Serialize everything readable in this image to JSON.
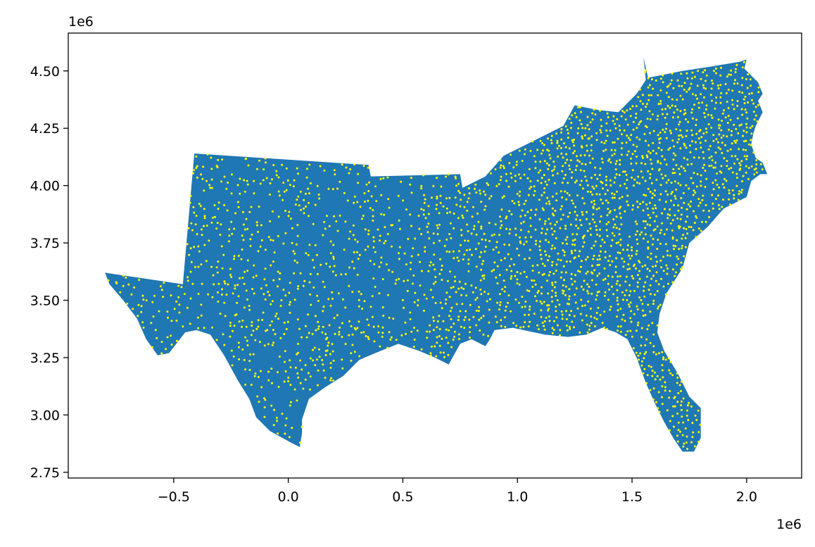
{
  "chart_data": {
    "type": "scatter",
    "title": "",
    "xlabel": "",
    "ylabel": "",
    "x_offset_label": "1e6",
    "y_offset_label": "1e6",
    "xlim": [
      -0.96,
      2.24
    ],
    "ylim": [
      2.725,
      4.665
    ],
    "x_ticks": [
      {
        "value": -0.5,
        "label": "−0.5"
      },
      {
        "value": 0.0,
        "label": "0.0"
      },
      {
        "value": 0.5,
        "label": "0.5"
      },
      {
        "value": 1.0,
        "label": "1.0"
      },
      {
        "value": 1.5,
        "label": "1.5"
      },
      {
        "value": 2.0,
        "label": "2.0"
      }
    ],
    "y_ticks": [
      {
        "value": 2.75,
        "label": "2.75"
      },
      {
        "value": 3.0,
        "label": "3.00"
      },
      {
        "value": 3.25,
        "label": "3.25"
      },
      {
        "value": 3.5,
        "label": "3.50"
      },
      {
        "value": 3.75,
        "label": "3.75"
      },
      {
        "value": 4.0,
        "label": "4.00"
      },
      {
        "value": 4.25,
        "label": "4.25"
      },
      {
        "value": 4.5,
        "label": "4.50"
      }
    ],
    "region_color": "#1f77b4",
    "point_color": "#ffff00",
    "grid": false,
    "legend": "none",
    "region_outline": [
      [
        -0.8,
        3.62
      ],
      [
        -0.46,
        3.57
      ],
      [
        -0.41,
        4.14
      ],
      [
        0.35,
        4.09
      ],
      [
        0.36,
        4.04
      ],
      [
        0.75,
        4.05
      ],
      [
        0.76,
        3.99
      ],
      [
        0.86,
        4.04
      ],
      [
        0.94,
        4.13
      ],
      [
        1.0,
        4.16
      ],
      [
        1.08,
        4.2
      ],
      [
        1.2,
        4.26
      ],
      [
        1.25,
        4.35
      ],
      [
        1.35,
        4.33
      ],
      [
        1.44,
        4.32
      ],
      [
        1.52,
        4.4
      ],
      [
        1.56,
        4.46
      ],
      [
        1.55,
        4.56
      ],
      [
        1.57,
        4.47
      ],
      [
        1.72,
        4.5
      ],
      [
        1.85,
        4.52
      ],
      [
        1.97,
        4.54
      ],
      [
        2.0,
        4.55
      ],
      [
        1.99,
        4.51
      ],
      [
        2.05,
        4.45
      ],
      [
        2.07,
        4.4
      ],
      [
        2.05,
        4.37
      ],
      [
        2.07,
        4.32
      ],
      [
        2.04,
        4.26
      ],
      [
        2.03,
        4.23
      ],
      [
        2.02,
        4.18
      ],
      [
        2.04,
        4.12
      ],
      [
        2.07,
        4.1
      ],
      [
        2.09,
        4.05
      ],
      [
        2.06,
        4.05
      ],
      [
        2.02,
        4.02
      ],
      [
        2.0,
        3.95
      ],
      [
        1.9,
        3.9
      ],
      [
        1.83,
        3.82
      ],
      [
        1.75,
        3.75
      ],
      [
        1.72,
        3.64
      ],
      [
        1.65,
        3.53
      ],
      [
        1.62,
        3.44
      ],
      [
        1.61,
        3.36
      ],
      [
        1.64,
        3.28
      ],
      [
        1.7,
        3.18
      ],
      [
        1.75,
        3.08
      ],
      [
        1.8,
        3.03
      ],
      [
        1.8,
        2.9
      ],
      [
        1.77,
        2.84
      ],
      [
        1.72,
        2.84
      ],
      [
        1.68,
        2.9
      ],
      [
        1.64,
        2.97
      ],
      [
        1.6,
        3.05
      ],
      [
        1.56,
        3.14
      ],
      [
        1.52,
        3.25
      ],
      [
        1.48,
        3.33
      ],
      [
        1.43,
        3.36
      ],
      [
        1.37,
        3.38
      ],
      [
        1.3,
        3.35
      ],
      [
        1.22,
        3.34
      ],
      [
        1.12,
        3.35
      ],
      [
        0.98,
        3.38
      ],
      [
        0.9,
        3.37
      ],
      [
        0.88,
        3.33
      ],
      [
        0.86,
        3.3
      ],
      [
        0.8,
        3.33
      ],
      [
        0.75,
        3.31
      ],
      [
        0.7,
        3.22
      ],
      [
        0.64,
        3.25
      ],
      [
        0.57,
        3.28
      ],
      [
        0.48,
        3.31
      ],
      [
        0.38,
        3.27
      ],
      [
        0.31,
        3.24
      ],
      [
        0.24,
        3.17
      ],
      [
        0.16,
        3.12
      ],
      [
        0.09,
        3.07
      ],
      [
        0.06,
        2.98
      ],
      [
        0.06,
        2.92
      ],
      [
        0.05,
        2.86
      ],
      [
        0.01,
        2.88
      ],
      [
        -0.08,
        2.93
      ],
      [
        -0.14,
        2.99
      ],
      [
        -0.17,
        3.07
      ],
      [
        -0.22,
        3.15
      ],
      [
        -0.28,
        3.26
      ],
      [
        -0.34,
        3.35
      ],
      [
        -0.4,
        3.37
      ],
      [
        -0.45,
        3.36
      ],
      [
        -0.52,
        3.27
      ],
      [
        -0.57,
        3.26
      ],
      [
        -0.62,
        3.33
      ],
      [
        -0.66,
        3.42
      ],
      [
        -0.72,
        3.5
      ],
      [
        -0.78,
        3.57
      ]
    ]
  }
}
